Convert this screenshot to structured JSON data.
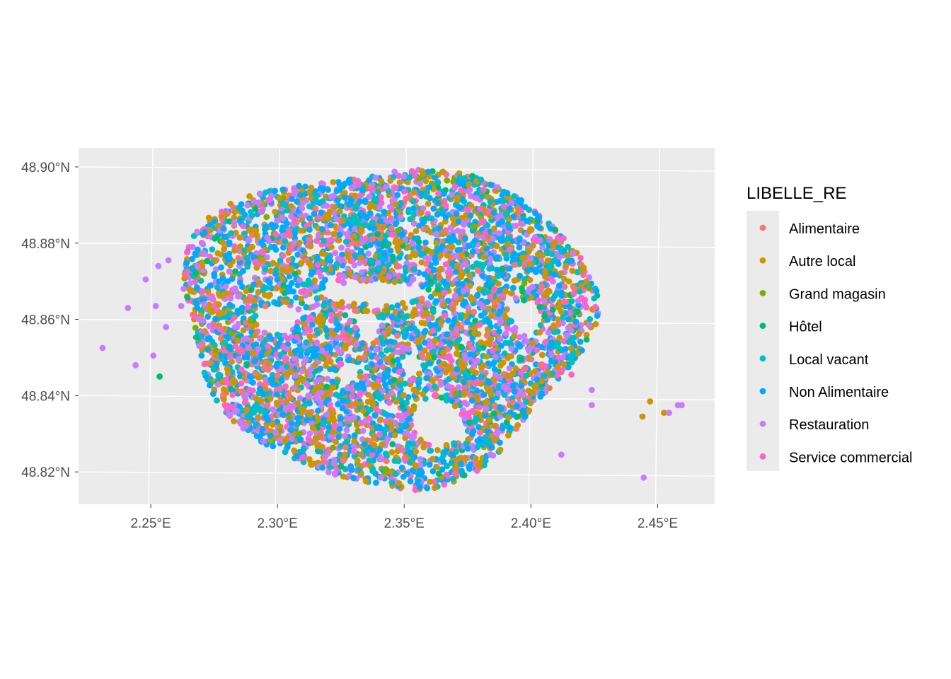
{
  "chart_data": {
    "type": "scatter",
    "title": "",
    "xlabel": "",
    "ylabel": "",
    "projection_note": "map",
    "xlim": [
      2.2215,
      2.4725
    ],
    "ylim": [
      48.8115,
      48.905
    ],
    "x_ticks": [
      {
        "value": 2.25,
        "label": "2.25°E"
      },
      {
        "value": 2.3,
        "label": "2.30°E"
      },
      {
        "value": 2.35,
        "label": "2.35°E"
      },
      {
        "value": 2.4,
        "label": "2.40°E"
      },
      {
        "value": 2.45,
        "label": "2.45°E"
      }
    ],
    "y_ticks": [
      {
        "value": 48.82,
        "label": "48.82°N"
      },
      {
        "value": 48.84,
        "label": "48.84°N"
      },
      {
        "value": 48.86,
        "label": "48.86°N"
      },
      {
        "value": 48.88,
        "label": "48.88°N"
      },
      {
        "value": 48.9,
        "label": "48.90°N"
      }
    ],
    "grid": true,
    "legend": {
      "title": "LIBELLE_RE",
      "position": "right",
      "items": [
        {
          "name": "Alimentaire",
          "color": "#F8766D"
        },
        {
          "name": "Autre local",
          "color": "#CD9600"
        },
        {
          "name": "Grand magasin",
          "color": "#7CAE00"
        },
        {
          "name": "Hôtel",
          "color": "#00BE67"
        },
        {
          "name": "Local vacant",
          "color": "#00BFC4"
        },
        {
          "name": "Non Alimentaire",
          "color": "#00A9FF"
        },
        {
          "name": "Restauration",
          "color": "#C77CFF"
        },
        {
          "name": "Service commercial",
          "color": "#FF61CC"
        }
      ]
    },
    "outlier_points": [
      {
        "x": 2.231,
        "y": 48.8525,
        "category": "Restauration"
      },
      {
        "x": 2.241,
        "y": 48.863,
        "category": "Restauration"
      },
      {
        "x": 2.244,
        "y": 48.848,
        "category": "Restauration"
      },
      {
        "x": 2.248,
        "y": 48.8705,
        "category": "Restauration"
      },
      {
        "x": 2.251,
        "y": 48.8505,
        "category": "Restauration"
      },
      {
        "x": 2.252,
        "y": 48.8635,
        "category": "Restauration"
      },
      {
        "x": 2.253,
        "y": 48.874,
        "category": "Restauration"
      },
      {
        "x": 2.256,
        "y": 48.858,
        "category": "Restauration"
      },
      {
        "x": 2.257,
        "y": 48.8755,
        "category": "Restauration"
      },
      {
        "x": 2.262,
        "y": 48.8635,
        "category": "Restauration"
      },
      {
        "x": 2.263,
        "y": 48.868,
        "category": "Restauration"
      },
      {
        "x": 2.2655,
        "y": 48.8695,
        "category": "Restauration"
      },
      {
        "x": 2.2535,
        "y": 48.845,
        "category": "Hôtel"
      },
      {
        "x": 2.416,
        "y": 48.8455,
        "category": "Service commercial"
      },
      {
        "x": 2.424,
        "y": 48.8415,
        "category": "Restauration"
      },
      {
        "x": 2.424,
        "y": 48.8375,
        "category": "Restauration"
      },
      {
        "x": 2.412,
        "y": 48.8245,
        "category": "Restauration"
      },
      {
        "x": 2.444,
        "y": 48.8345,
        "category": "Autre local"
      },
      {
        "x": 2.447,
        "y": 48.8385,
        "category": "Autre local"
      },
      {
        "x": 2.4525,
        "y": 48.8355,
        "category": "Autre local"
      },
      {
        "x": 2.4545,
        "y": 48.8355,
        "category": "Restauration"
      },
      {
        "x": 2.458,
        "y": 48.8375,
        "category": "Restauration"
      },
      {
        "x": 2.4595,
        "y": 48.8375,
        "category": "Restauration"
      },
      {
        "x": 2.4445,
        "y": 48.8185,
        "category": "Restauration"
      }
    ],
    "cluster": {
      "description": "thousands of overlapping points covering central Paris, all categories",
      "x_range": [
        2.255,
        2.415
      ],
      "y_range": [
        48.816,
        48.9005
      ],
      "center": {
        "x": 2.343,
        "y": 48.8595
      }
    }
  }
}
